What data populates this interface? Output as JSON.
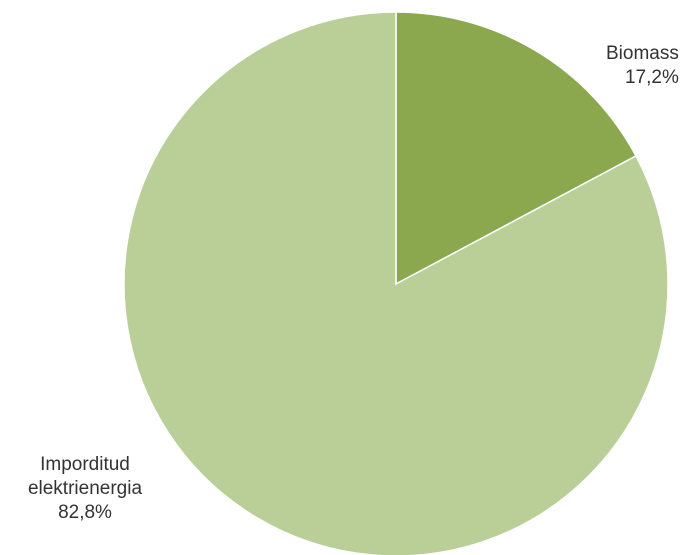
{
  "chart_data": {
    "type": "pie",
    "title": "",
    "slices": [
      {
        "label": "Biomass",
        "value": 17.2,
        "display": "17,2%",
        "color": "#8ba84e"
      },
      {
        "label_lines": [
          "Imporditud",
          "elektrienergia"
        ],
        "label": "Imporditud elektrienergia",
        "value": 82.8,
        "display": "82,8%",
        "color": "#b9cf97"
      }
    ],
    "start_angle": "top",
    "direction": "clockwise"
  }
}
